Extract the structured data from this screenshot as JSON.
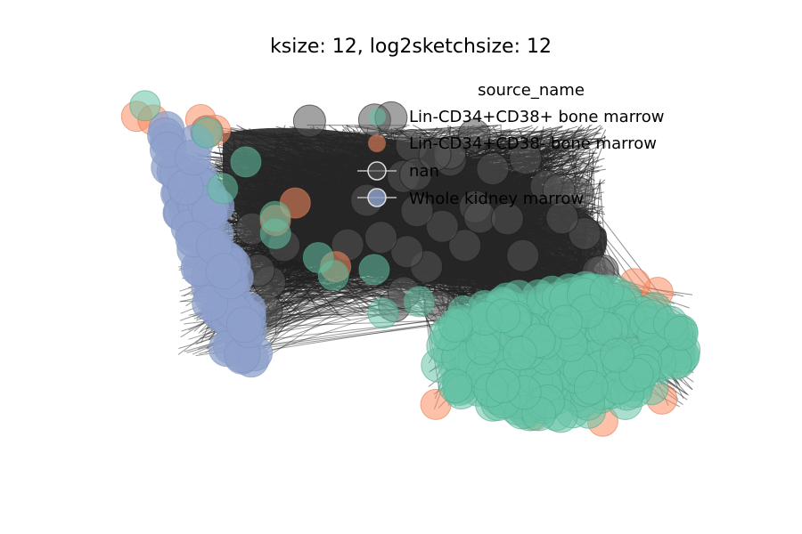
{
  "chart_data": {
    "type": "scatter",
    "subtype": "network-graph",
    "title": "ksize: 12, log2sketchsize: 12",
    "axes_visible": false,
    "grid": false,
    "legend": {
      "title": "source_name",
      "placement": "top-right",
      "entries": [
        {
          "label": "Lin-CD34+CD38+ bone marrow",
          "color": "#66c2a5",
          "marker": "circle"
        },
        {
          "label": "Lin-CD34+CD38- bone marrow",
          "color": "#fc8d62",
          "marker": "circle"
        },
        {
          "label": "nan",
          "color": "#555555",
          "marker": "circle-with-line"
        },
        {
          "label": "Whole kidney marrow",
          "color": "#8da0cb",
          "marker": "circle-with-line"
        }
      ]
    },
    "edge_color": "#222222",
    "clusters": [
      {
        "series": "Whole kidney marrow",
        "color": "#8da0cb",
        "region": "left band"
      },
      {
        "series": "nan",
        "color": "#555555",
        "region": "center dense edge mass"
      },
      {
        "series": "Lin-CD34+CD38+ bone marrow",
        "color": "#66c2a5",
        "region": "bottom-right mass and scattered center"
      },
      {
        "series": "Lin-CD34+CD38- bone marrow",
        "color": "#fc8d62",
        "region": "bottom-right rim and scattered"
      }
    ]
  }
}
